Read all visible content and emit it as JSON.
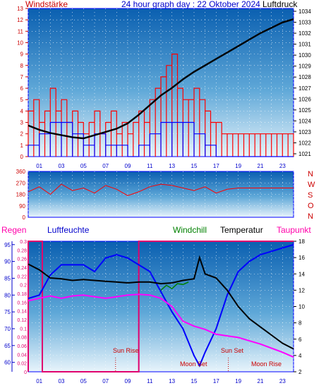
{
  "header": {
    "left_label": "Windstärke",
    "title": "24 hour graph day : 22 Oktober 2024",
    "right_label": "Luftdruck"
  },
  "wind_panel": {
    "left_ticks": [
      "13",
      "12",
      "11",
      "10",
      "9",
      "8",
      "7",
      "6",
      "5",
      "4",
      "3",
      "2",
      "1",
      "0"
    ],
    "right_ticks": [
      "1034",
      "1033",
      "1032",
      "1031",
      "1030",
      "1029",
      "1028",
      "1027",
      "1026",
      "1025",
      "1024",
      "1023",
      "1022",
      "1021"
    ]
  },
  "direction_panel": {
    "left_ticks": [
      "360",
      "270",
      "180",
      "90",
      "0"
    ],
    "compass": [
      "N",
      "W",
      "S",
      "O",
      "N"
    ]
  },
  "x_axis": {
    "labels": [
      "01",
      "03",
      "05",
      "07",
      "09",
      "11",
      "13",
      "15",
      "17",
      "19",
      "21",
      "23"
    ]
  },
  "bottom_header": {
    "regen": "Regen",
    "luftfeuchte": "Luftfeuchte",
    "windchill": "Windchill",
    "temperatur": "Temperatur",
    "taupunkt": "Taupunkt"
  },
  "bottom_panel": {
    "humidity_ticks": [
      "95",
      "90",
      "85",
      "80",
      "75",
      "70",
      "65",
      "60"
    ],
    "rain_ticks": [
      "0.3",
      "0.28",
      "0.26",
      "0.24",
      "0.22",
      "0.2",
      "0.18",
      "0.16",
      "0.14",
      "0.12",
      "0.1",
      "0.08",
      "0.06",
      "0.04",
      "0.02",
      "0"
    ],
    "temp_ticks": [
      "18",
      "16",
      "14",
      "12",
      "10",
      "8",
      "6",
      "4",
      "2"
    ],
    "annotations": {
      "sun_rise": "Sun Rise",
      "moon_set": "Moon Set",
      "sun_set": "Sun Set",
      "moon_rise": "Moon Rise"
    }
  },
  "colors": {
    "wind": "#ff0000",
    "gust": "#0000ff",
    "pressure": "#000000",
    "humidity": "#0000ff",
    "temperature": "#000000",
    "windchill": "#008000",
    "dewpoint": "#ff00ff",
    "rain": "#e0006e",
    "label_red": "#cc0000",
    "label_blue": "#0000cc",
    "label_pink": "#ff00aa"
  },
  "chart_data": [
    {
      "type": "line",
      "title": "24 hour graph day : 22 Oktober 2024",
      "x_unit": "hour",
      "series": [
        {
          "name": "Windstärke",
          "axis": "left",
          "x": [
            0,
            0.5,
            1,
            1.5,
            2,
            2.5,
            3,
            3.5,
            4,
            4.5,
            5,
            5.5,
            6,
            6.5,
            7,
            7.5,
            8,
            8.5,
            9,
            9.5,
            10,
            10.5,
            11,
            11.5,
            12,
            12.5,
            13,
            13.5,
            14,
            14.5,
            15,
            15.5,
            16,
            16.5,
            17,
            17.5,
            18,
            18.5,
            19,
            19.5,
            20,
            20.5,
            21,
            21.5,
            22,
            22.5,
            23,
            23.5,
            24
          ],
          "values": [
            4,
            5,
            3,
            4,
            6,
            4,
            5,
            3,
            4,
            3,
            2,
            3,
            4,
            2,
            3,
            4,
            2,
            3,
            2,
            3,
            4,
            3,
            5,
            6,
            7,
            8,
            9,
            6,
            5,
            5,
            6,
            5,
            4,
            3,
            3,
            2,
            2,
            2,
            2,
            2,
            2,
            2,
            2,
            2,
            2,
            2,
            2,
            2,
            2
          ]
        },
        {
          "name": "Böen",
          "axis": "left",
          "x": [
            0,
            1,
            2,
            3,
            4,
            5,
            6,
            7,
            8,
            9,
            10,
            11,
            12,
            13,
            14,
            15,
            16,
            17,
            18,
            19,
            20,
            21,
            22,
            23,
            24
          ],
          "values": [
            1,
            2,
            3,
            3,
            2,
            1,
            2,
            1,
            1,
            0,
            1,
            2,
            3,
            3,
            3,
            2,
            1,
            0,
            0,
            0,
            0,
            0,
            0,
            0,
            0
          ]
        },
        {
          "name": "Luftdruck",
          "axis": "right",
          "x": [
            0,
            1,
            2,
            3,
            4,
            5,
            6,
            7,
            8,
            9,
            10,
            11,
            12,
            13,
            14,
            15,
            16,
            17,
            18,
            19,
            20,
            21,
            22,
            23,
            24
          ],
          "values": [
            1023.3,
            1022.9,
            1022.6,
            1022.4,
            1022.2,
            1022.1,
            1022.4,
            1022.7,
            1023.0,
            1023.5,
            1024.3,
            1025.2,
            1026.1,
            1026.8,
            1027.6,
            1028.3,
            1028.9,
            1029.5,
            1030.1,
            1030.7,
            1031.3,
            1031.9,
            1032.4,
            1032.9,
            1033.2
          ]
        }
      ],
      "ylim_left": [
        0,
        13
      ],
      "ylim_right": [
        1020.4,
        1034.2
      ]
    },
    {
      "type": "line",
      "x_unit": "hour",
      "series": [
        {
          "name": "Windrichtung",
          "x": [
            0,
            1,
            2,
            3,
            4,
            5,
            6,
            7,
            8,
            9,
            10,
            11,
            12,
            13,
            14,
            15,
            16,
            17,
            18,
            19,
            20,
            21,
            22,
            23,
            24
          ],
          "values": [
            200,
            240,
            180,
            260,
            210,
            230,
            190,
            250,
            220,
            170,
            200,
            240,
            260,
            250,
            230,
            210,
            240,
            190,
            220,
            230,
            230,
            230,
            230,
            230,
            230
          ]
        }
      ],
      "ylim": [
        0,
        360
      ]
    },
    {
      "type": "line",
      "x_unit": "hour",
      "series": [
        {
          "name": "Luftfeuchte",
          "axis": "humidity",
          "x": [
            0,
            1,
            2,
            3,
            4,
            5,
            6,
            7,
            8,
            9,
            10,
            11,
            12,
            13,
            14,
            15,
            15.5,
            16,
            17,
            18,
            19,
            20,
            21,
            22,
            23,
            24
          ],
          "values": [
            79,
            80,
            86,
            89,
            89,
            89,
            87,
            91,
            92,
            91,
            89,
            87,
            81,
            75,
            70,
            62,
            59,
            63,
            70,
            80,
            87,
            90,
            92,
            93,
            94,
            95
          ]
        },
        {
          "name": "Temperatur",
          "axis": "temp",
          "x": [
            0,
            1,
            2,
            3,
            4,
            5,
            6,
            7,
            8,
            9,
            10,
            11,
            12,
            13,
            14,
            15,
            15.5,
            16,
            17,
            18,
            19,
            20,
            21,
            22,
            23,
            24
          ],
          "values": [
            15.2,
            14.5,
            13.5,
            13.4,
            13.2,
            13.3,
            13.2,
            13.1,
            13.0,
            12.9,
            13.0,
            13.0,
            12.8,
            12.9,
            13.2,
            13.4,
            16.0,
            14.0,
            13.5,
            12.0,
            10.0,
            8.5,
            7.5,
            6.5,
            5.5,
            4.8
          ]
        },
        {
          "name": "Windchill",
          "axis": "temp",
          "x": [
            12,
            12.5,
            13,
            13.5,
            14,
            14.5
          ],
          "values": [
            12.0,
            12.6,
            12.2,
            12.8,
            12.7,
            13.0
          ]
        },
        {
          "name": "Taupunkt",
          "axis": "temp",
          "x": [
            0,
            1,
            2,
            3,
            4,
            5,
            6,
            7,
            8,
            9,
            10,
            11,
            12,
            13,
            14,
            15,
            16,
            17,
            18,
            19,
            20,
            21,
            22,
            23,
            24
          ],
          "values": [
            10.7,
            11.0,
            11.3,
            11.0,
            11.3,
            11.4,
            11.2,
            11.0,
            11.2,
            11.4,
            11.5,
            11.4,
            11.0,
            10.0,
            8.2,
            7.6,
            7.2,
            6.6,
            6.4,
            6.2,
            5.8,
            5.4,
            4.9,
            4.4,
            3.8
          ]
        },
        {
          "name": "Regen",
          "axis": "rain",
          "x": [
            0,
            0.05,
            0.06,
            10,
            10.01,
            24
          ],
          "values": [
            0,
            0.3,
            0,
            0,
            0.3,
            0.3
          ]
        }
      ],
      "ylim_humidity": [
        57.2,
        96
      ],
      "ylim_temp": [
        2,
        18
      ],
      "ylim_rain": [
        0,
        0.3
      ]
    }
  ]
}
